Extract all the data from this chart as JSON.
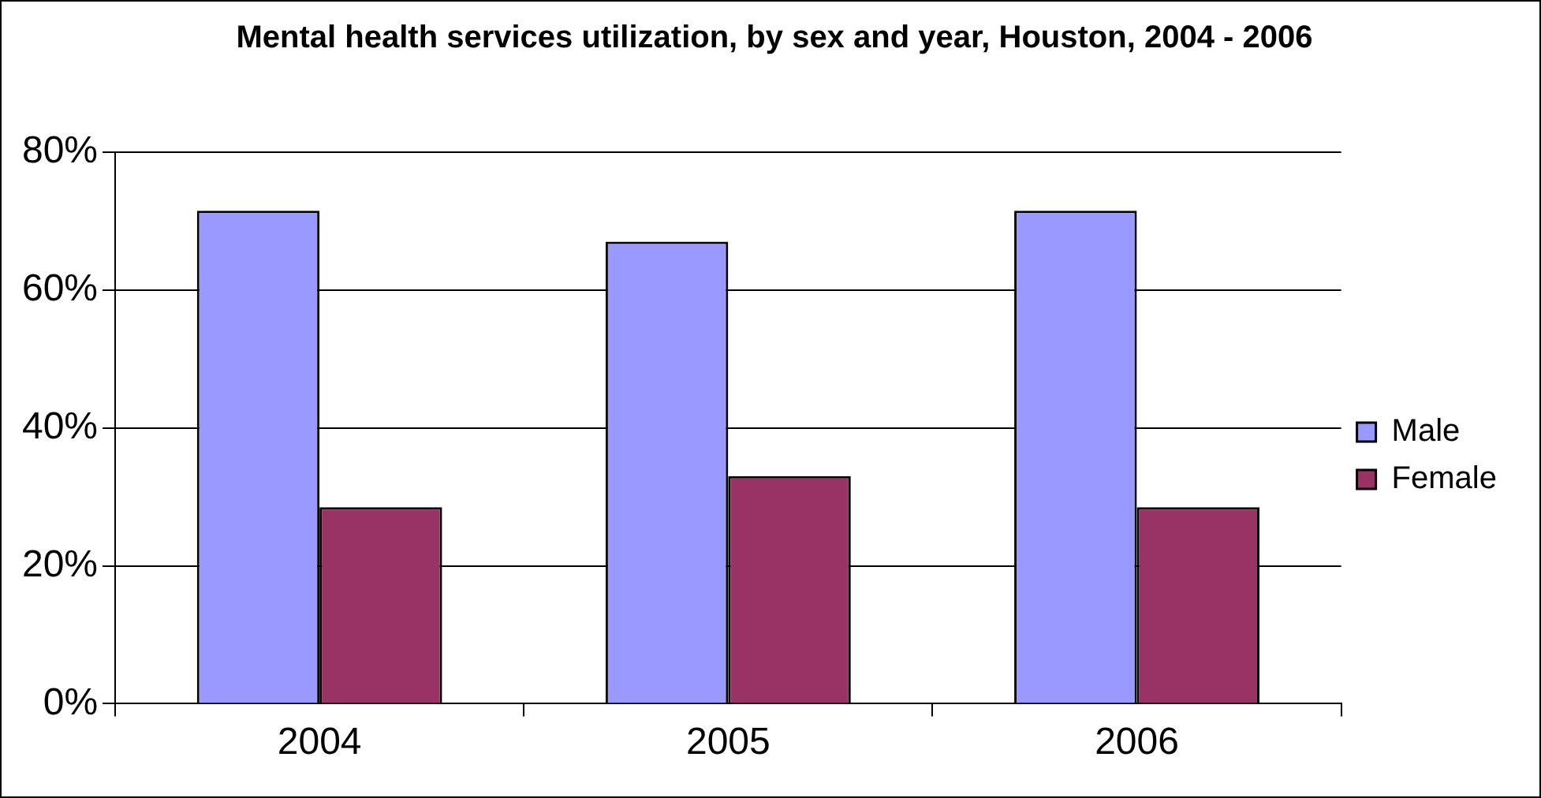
{
  "chart_data": {
    "type": "bar",
    "title": "Mental health services utilization, by sex and year, Houston, 2004 - 2006",
    "categories": [
      "2004",
      "2005",
      "2006"
    ],
    "series": [
      {
        "name": "Male",
        "color": "#9999ff",
        "values": [
          71.5,
          67,
          71.5
        ]
      },
      {
        "name": "Female",
        "color": "#993366",
        "values": [
          28.5,
          33,
          28.5
        ]
      }
    ],
    "ylim": [
      0,
      80
    ],
    "yticks": [
      {
        "value": 0,
        "label": "0%"
      },
      {
        "value": 20,
        "label": "20%"
      },
      {
        "value": 40,
        "label": "40%"
      },
      {
        "value": 60,
        "label": "60%"
      },
      {
        "value": 80,
        "label": "80%"
      }
    ],
    "grid": "y",
    "legend": "right"
  }
}
